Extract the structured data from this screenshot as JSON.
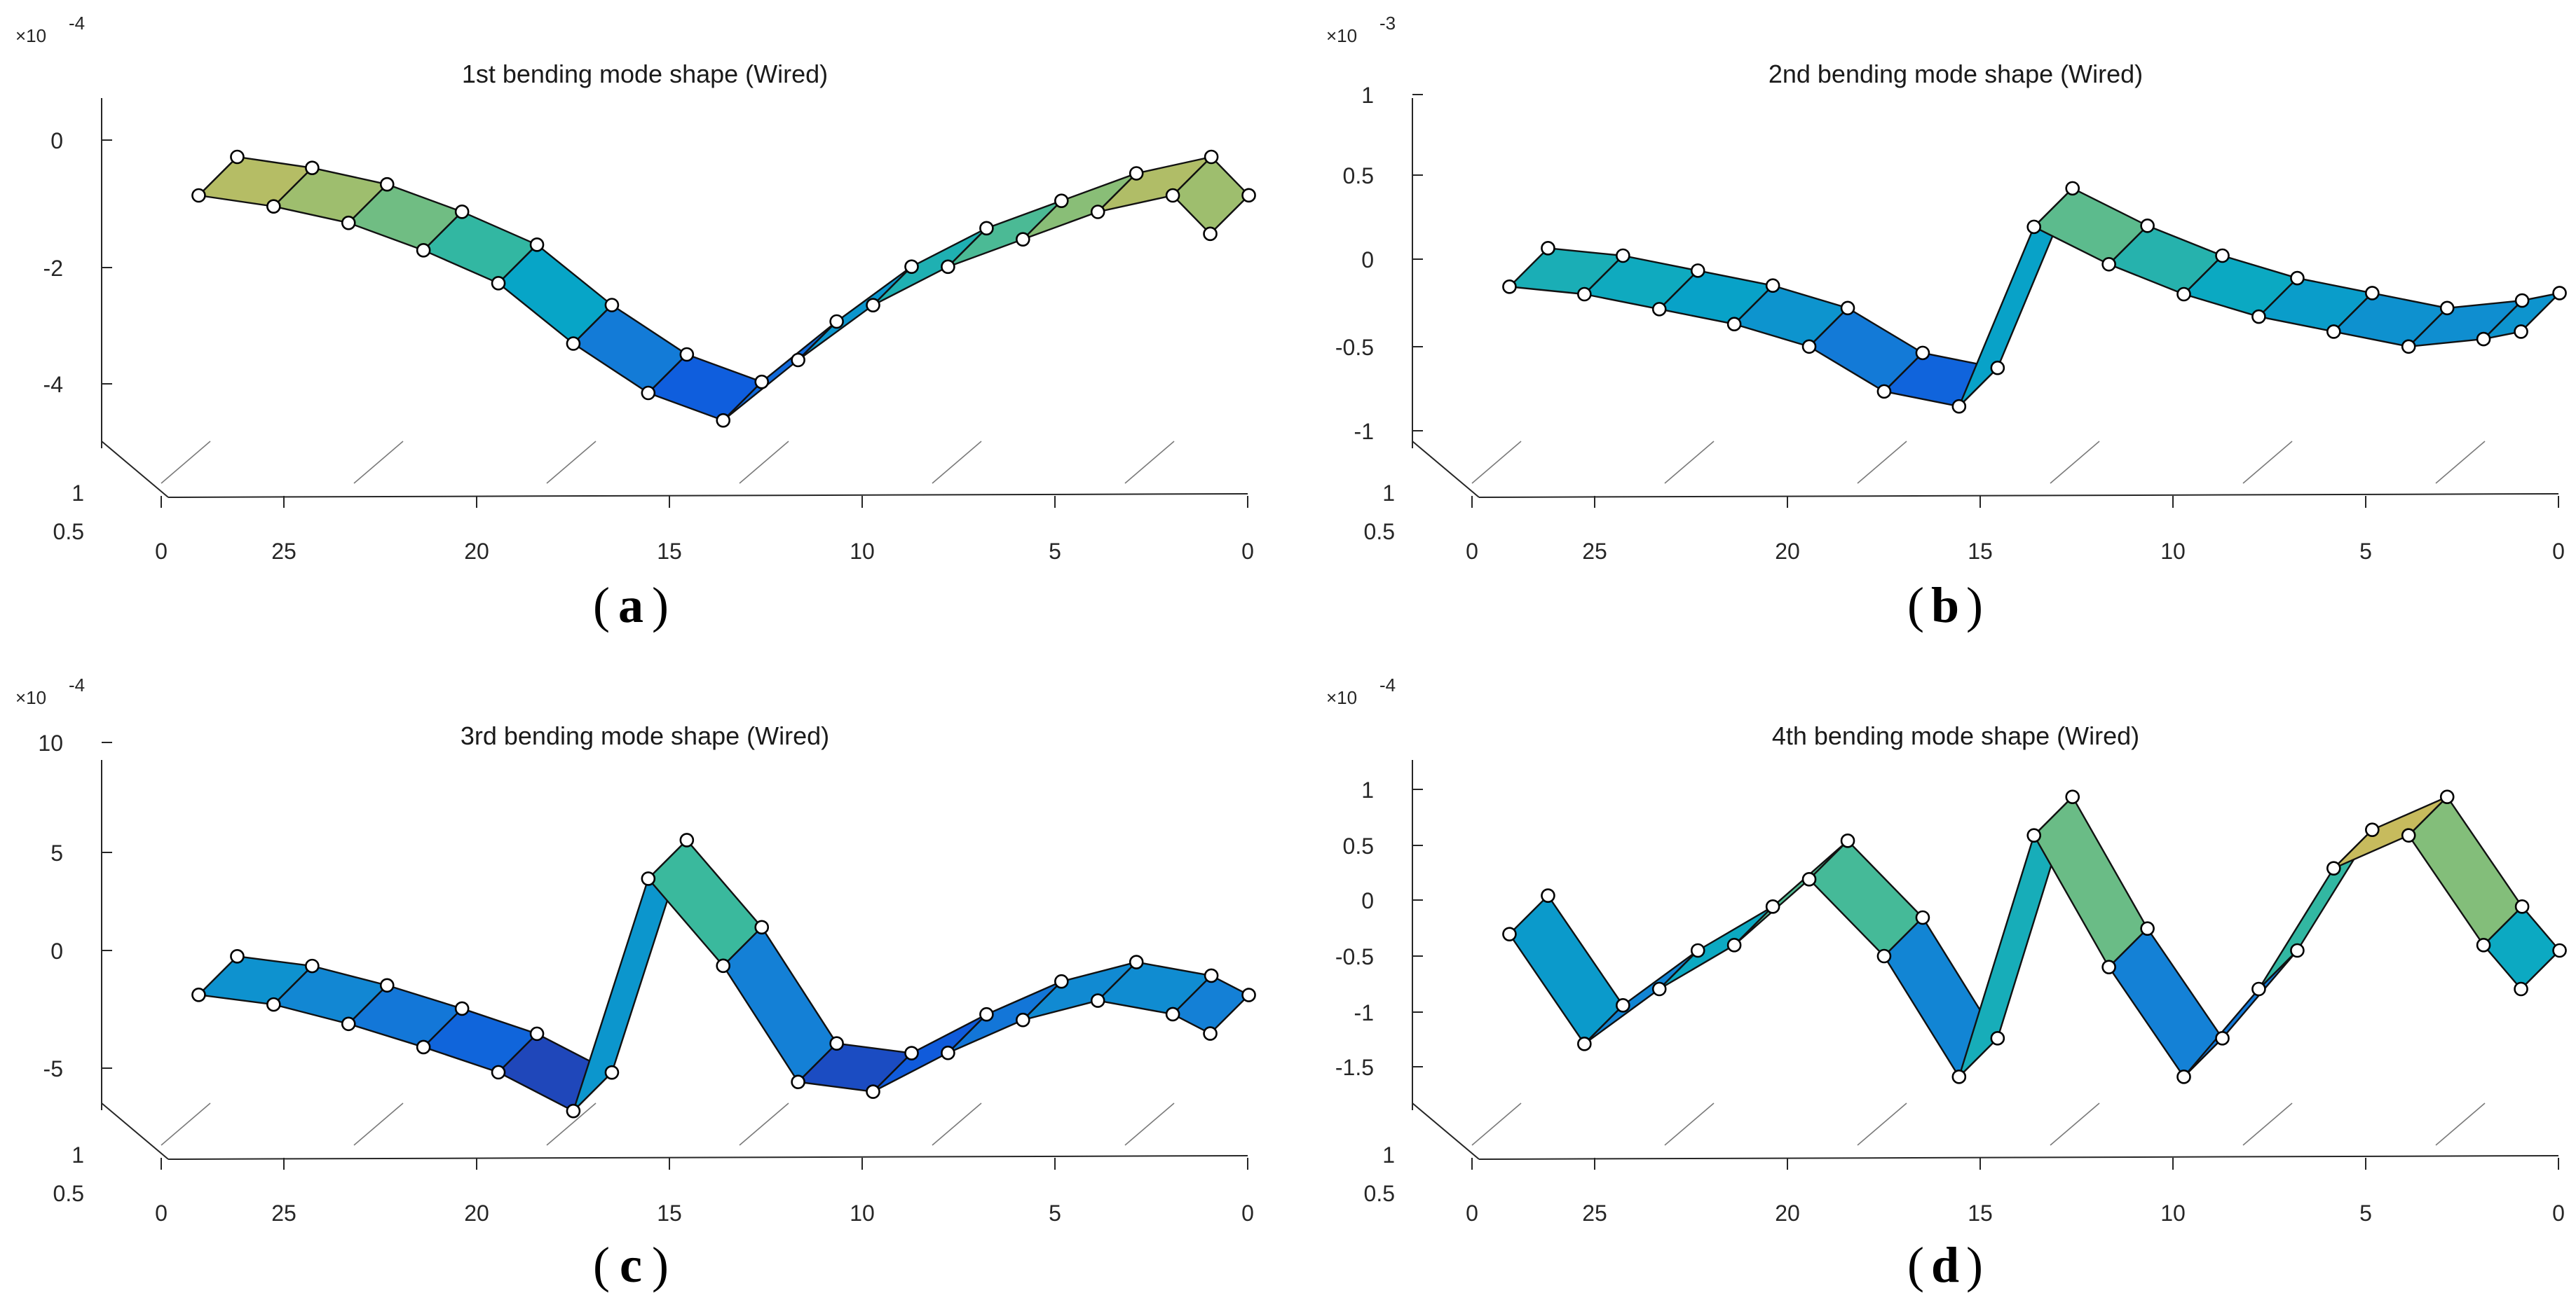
{
  "figure": {
    "panels": [
      {
        "id": "a",
        "caption_letter": "a",
        "title": "1st bending mode shape (Wired)",
        "exponent": "-4",
        "yticks": [
          "0",
          "-2",
          "-4"
        ],
        "xticks": [
          "0",
          "25",
          "20",
          "15",
          "10",
          "5",
          "0"
        ],
        "zticks": [
          "1",
          "0.5"
        ]
      },
      {
        "id": "b",
        "caption_letter": "b",
        "title": "2nd bending mode shape (Wired)",
        "exponent": "-3",
        "yticks": [
          "1",
          "0.5",
          "0",
          "-0.5",
          "-1"
        ],
        "xticks": [
          "0",
          "25",
          "20",
          "15",
          "10",
          "5",
          "0"
        ],
        "zticks": [
          "1",
          "0.5"
        ]
      },
      {
        "id": "c",
        "caption_letter": "c",
        "title": "3rd bending mode shape (Wired)",
        "exponent": "-4",
        "yticks": [
          "10",
          "5",
          "0",
          "-5"
        ],
        "xticks": [
          "0",
          "25",
          "20",
          "15",
          "10",
          "5",
          "0"
        ],
        "zticks": [
          "1",
          "0.5"
        ]
      },
      {
        "id": "d",
        "caption_letter": "d",
        "title": "4th bending mode shape (Wired)",
        "exponent": "-4",
        "yticks": [
          "1",
          "0.5",
          "0",
          "-0.5",
          "-1",
          "-1.5"
        ],
        "xticks": [
          "0",
          "25",
          "20",
          "15",
          "10",
          "5",
          "0"
        ],
        "zticks": [
          "1",
          "0.5"
        ]
      }
    ]
  },
  "chart_data": [
    {
      "type": "surface",
      "title": "1st bending mode shape (Wired)",
      "x": [
        28,
        26,
        24,
        22,
        20,
        18,
        16,
        14,
        12,
        10,
        8,
        6,
        4,
        2,
        1
      ],
      "y_scale": "1e-4",
      "values": [
        -0.2,
        -0.4,
        -0.7,
        -1.2,
        -1.8,
        -2.9,
        -3.8,
        -4.3,
        -3.2,
        -2.2,
        -1.5,
        -1.0,
        -0.5,
        -0.2,
        -0.9
      ],
      "ylim": [
        -5,
        1
      ],
      "xlim": [
        0,
        29
      ],
      "zlim": [
        0,
        1
      ],
      "colormap": "parula"
    },
    {
      "type": "surface",
      "title": "2nd bending mode shape (Wired)",
      "x": [
        28,
        26,
        24,
        22,
        20,
        18,
        16,
        14,
        12,
        10,
        8,
        6,
        4,
        2,
        1
      ],
      "y_scale": "1e-3",
      "values": [
        -0.05,
        -0.1,
        -0.2,
        -0.3,
        -0.45,
        -0.75,
        -0.85,
        0.35,
        0.1,
        -0.1,
        -0.25,
        -0.35,
        -0.45,
        -0.4,
        -0.35
      ],
      "ylim": [
        -1.2,
        1
      ],
      "xlim": [
        0,
        29
      ],
      "zlim": [
        0,
        1
      ],
      "colormap": "parula"
    },
    {
      "type": "surface",
      "title": "3rd bending mode shape (Wired)",
      "x": [
        28,
        26,
        24,
        22,
        20,
        18,
        16,
        14,
        12,
        10,
        8,
        6,
        4,
        2,
        1
      ],
      "y_scale": "1e-4",
      "values": [
        -0.5,
        -1.0,
        -2.0,
        -3.2,
        -4.5,
        -6.5,
        5.5,
        1.0,
        -5.0,
        -5.5,
        -3.5,
        -1.8,
        -0.8,
        -1.5,
        -2.5
      ],
      "ylim": [
        -7,
        10
      ],
      "xlim": [
        0,
        29
      ],
      "zlim": [
        0,
        1
      ],
      "colormap": "parula"
    },
    {
      "type": "surface",
      "title": "4th bending mode shape (Wired)",
      "x": [
        28,
        26,
        24,
        22,
        20,
        18,
        16,
        14,
        12,
        10,
        8,
        6,
        4,
        2,
        1
      ],
      "y_scale": "1e-4",
      "values": [
        -0.1,
        -1.1,
        -0.6,
        -0.2,
        0.4,
        -0.3,
        -1.4,
        0.8,
        -0.4,
        -1.4,
        -0.6,
        0.5,
        0.8,
        -0.2,
        -0.6
      ],
      "ylim": [
        -1.8,
        1.2
      ],
      "xlim": [
        0,
        29
      ],
      "zlim": [
        0,
        1
      ],
      "colormap": "parula"
    }
  ]
}
